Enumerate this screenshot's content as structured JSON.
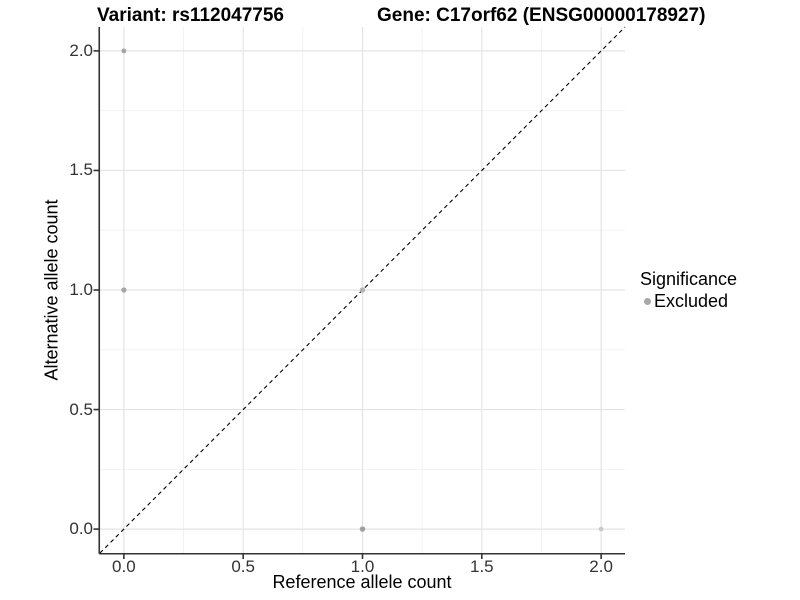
{
  "figure": {
    "title_left": "Variant: rs112047756",
    "title_right": "Gene: C17orf62 (ENSG00000178927)"
  },
  "chart_data": {
    "type": "scatter",
    "title": "Variant: rs112047756 — Gene: C17orf62 (ENSG00000178927)",
    "xlabel": "Reference allele count",
    "ylabel": "Alternative allele count",
    "xlim": [
      -0.1,
      2.1
    ],
    "ylim": [
      -0.1,
      2.1
    ],
    "xtick_values": [
      0,
      0.5,
      1,
      1.5,
      2
    ],
    "ytick_values": [
      0,
      0.5,
      1,
      1.5,
      2
    ],
    "xtick_labels": [
      "0.0",
      "0.5",
      "1.0",
      "1.5",
      "2.0"
    ],
    "ytick_labels": [
      "0.0",
      "0.5",
      "1.0",
      "1.5",
      "2.0"
    ],
    "minor_tick_values": [
      0.25,
      0.75,
      1.25,
      1.75
    ],
    "grid": {
      "show": true,
      "major_color": "#e4e4e4",
      "minor_color": "#f1f1f1"
    },
    "axis_color": "#333333",
    "identity_line": {
      "from": [
        -0.1,
        -0.1
      ],
      "to": [
        2.1,
        2.1
      ],
      "style": "dashed",
      "color": "#000000"
    },
    "series": [
      {
        "name": "Excluded",
        "points": [
          {
            "x": 0,
            "y": 2,
            "color": "#a4a4a4",
            "r": 2.4
          },
          {
            "x": 0,
            "y": 1,
            "color": "#a6a6a6",
            "r": 2.6
          },
          {
            "x": 1,
            "y": 1,
            "color": "#b4b4b4",
            "r": 2.7
          },
          {
            "x": 1,
            "y": 0,
            "color": "#9f9f9f",
            "r": 2.7
          },
          {
            "x": 2,
            "y": 0,
            "color": "#c8c8c8",
            "r": 2.4
          }
        ]
      }
    ],
    "legend": {
      "title": "Significance",
      "position": "right",
      "entries": [
        {
          "label": "Excluded",
          "color": "#a8a8a8"
        }
      ]
    }
  }
}
